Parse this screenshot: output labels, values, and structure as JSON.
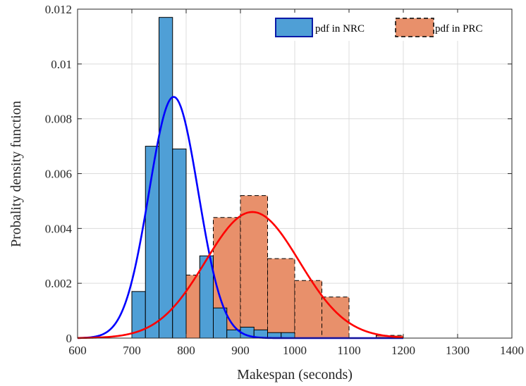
{
  "chart_data": {
    "type": "bar",
    "xlabel": "Makespan (seconds)",
    "ylabel": "Probality density function",
    "xlim": [
      600,
      1400
    ],
    "ylim": [
      0,
      0.012
    ],
    "x_ticks": [
      600,
      700,
      800,
      900,
      1000,
      1100,
      1200,
      1300,
      1400
    ],
    "y_ticks": [
      0,
      0.002,
      0.004,
      0.006,
      0.008,
      0.01,
      0.012
    ],
    "x_tick_labels": [
      "600",
      "700",
      "800",
      "900",
      "1000",
      "1100",
      "1200",
      "1300",
      "1400"
    ],
    "y_tick_labels": [
      "0",
      "0.002",
      "0.004",
      "0.006",
      "0.008",
      "0.01",
      "0.012"
    ],
    "grid": true,
    "legend_position": "top-right",
    "series": [
      {
        "name": "pdf in NRC",
        "kind": "histogram",
        "color": "#4f9fd6",
        "edge": "#000000",
        "bins": [
          {
            "x0": 700,
            "x1": 725,
            "value": 0.0017
          },
          {
            "x0": 725,
            "x1": 750,
            "value": 0.007
          },
          {
            "x0": 750,
            "x1": 775,
            "value": 0.0117
          },
          {
            "x0": 775,
            "x1": 800,
            "value": 0.0069
          },
          {
            "x0": 800,
            "x1": 825,
            "value": 0.0
          },
          {
            "x0": 825,
            "x1": 850,
            "value": 0.003
          },
          {
            "x0": 850,
            "x1": 875,
            "value": 0.0011
          },
          {
            "x0": 875,
            "x1": 900,
            "value": 0.0003
          },
          {
            "x0": 900,
            "x1": 925,
            "value": 0.0004
          },
          {
            "x0": 925,
            "x1": 950,
            "value": 0.0003
          },
          {
            "x0": 950,
            "x1": 975,
            "value": 0.0002
          },
          {
            "x0": 975,
            "x1": 1000,
            "value": 0.0002
          }
        ]
      },
      {
        "name": "pdf in PRC",
        "kind": "histogram",
        "color": "#e8906b",
        "edge": "#000000",
        "edge_style": "dashed",
        "bins": [
          {
            "x0": 700,
            "x1": 750,
            "value": 0.0007
          },
          {
            "x0": 750,
            "x1": 800,
            "value": 0.0006
          },
          {
            "x0": 800,
            "x1": 850,
            "value": 0.0023
          },
          {
            "x0": 850,
            "x1": 900,
            "value": 0.0044
          },
          {
            "x0": 900,
            "x1": 950,
            "value": 0.0052
          },
          {
            "x0": 950,
            "x1": 1000,
            "value": 0.0029
          },
          {
            "x0": 1000,
            "x1": 1050,
            "value": 0.0021
          },
          {
            "x0": 1050,
            "x1": 1100,
            "value": 0.0015
          },
          {
            "x0": 1100,
            "x1": 1150,
            "value": 0.0
          },
          {
            "x0": 1150,
            "x1": 1200,
            "value": 0.0001
          }
        ]
      },
      {
        "kind": "curve",
        "color": "#0000ff",
        "mean": 777,
        "peak": 0.0088,
        "sigma": 45.3
      },
      {
        "kind": "curve",
        "color": "#ff0000",
        "mean": 922,
        "peak": 0.0046,
        "sigma": 86.7
      }
    ]
  }
}
